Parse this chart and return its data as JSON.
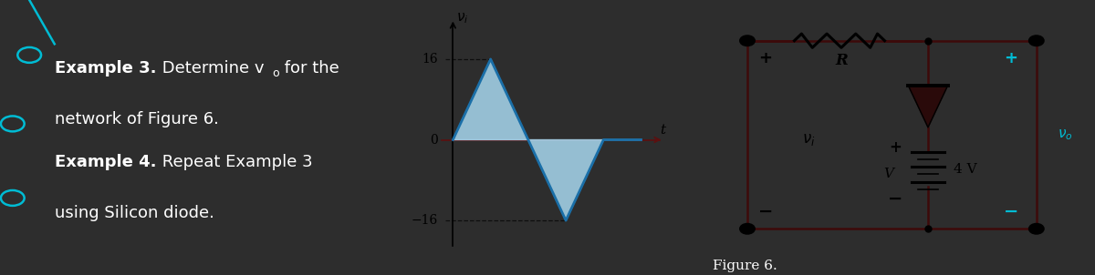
{
  "bg_color": "#2d2d2d",
  "panel_bg": "#ffffff",
  "fig_width": 12.0,
  "fig_height": 3.02,
  "cyan_color": "#00bcd4",
  "text_color": "#ffffff",
  "wire_color": "#3d0a0a",
  "black": "#000000",
  "figure_label": "Figure 6.",
  "waveform": {
    "x": [
      0,
      1,
      3,
      4,
      5
    ],
    "y": [
      0,
      16,
      -16,
      0,
      0
    ],
    "fill_color": "#a8d8f0",
    "line_color": "#1a6fa8",
    "line_width": 2.0,
    "axis_color": "#5c1010",
    "xlim": [
      -0.6,
      5.8
    ],
    "ylim": [
      -23,
      25
    ]
  }
}
